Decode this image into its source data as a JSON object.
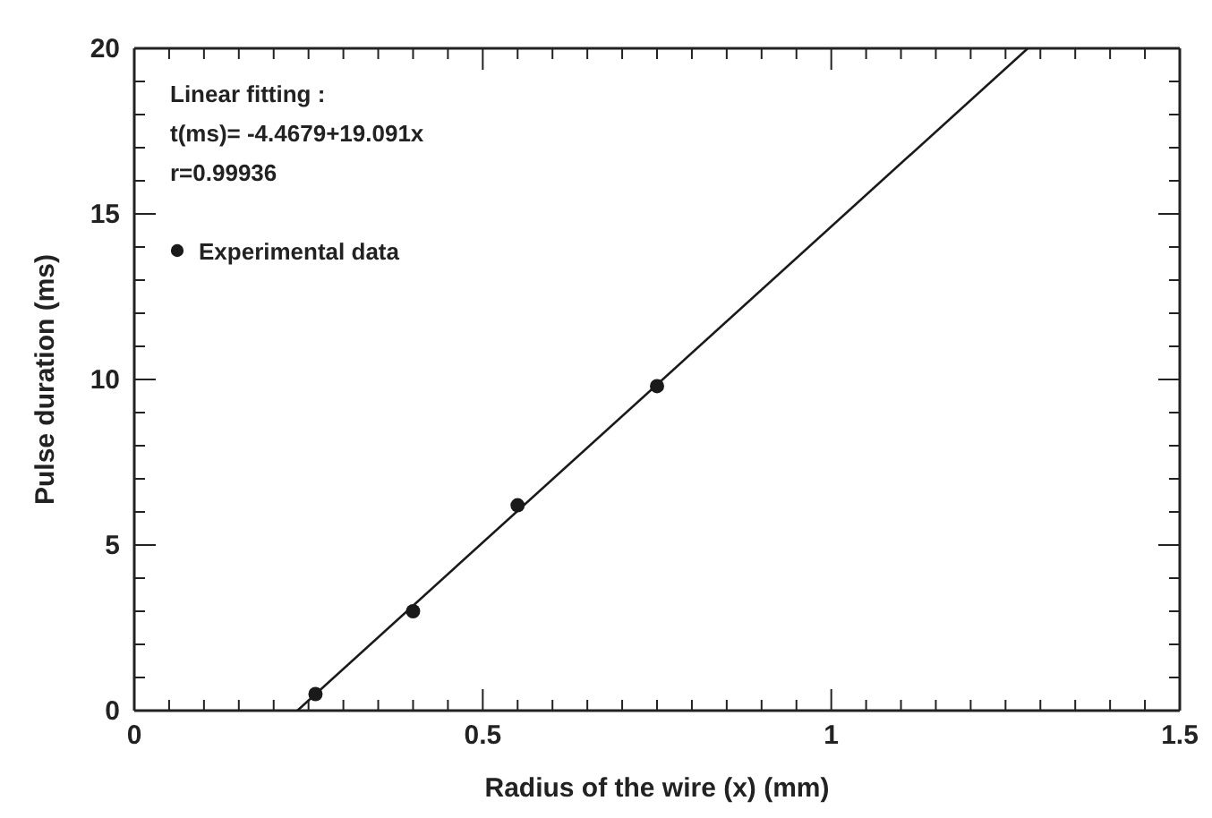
{
  "chart_data": {
    "type": "scatter",
    "xlabel": "Radius of the wire (x) (mm)",
    "ylabel": "Pulse duration (ms)",
    "annotations": [
      "Linear fitting :",
      "t(ms)= -4.4679+19.091x",
      "r=0.99936"
    ],
    "xlim": [
      0,
      1.5
    ],
    "ylim": [
      0,
      20
    ],
    "xticks": [
      0,
      {
        "value": 0.05,
        "label": null
      },
      {
        "value": 0.1,
        "label": null
      },
      {
        "value": 0.15,
        "label": null
      },
      {
        "value": 0.2,
        "label": null
      },
      {
        "value": 0.25,
        "label": null
      },
      {
        "value": 0.3,
        "label": null
      },
      {
        "value": 0.35,
        "label": null
      },
      {
        "value": 0.4,
        "label": null
      },
      {
        "value": 0.45,
        "label": null
      },
      0.5,
      {
        "value": 0.55,
        "label": null
      },
      {
        "value": 0.6,
        "label": null
      },
      {
        "value": 0.65,
        "label": null
      },
      {
        "value": 0.7,
        "label": null
      },
      {
        "value": 0.75,
        "label": null
      },
      {
        "value": 0.8,
        "label": null
      },
      {
        "value": 0.85,
        "label": null
      },
      {
        "value": 0.9,
        "label": null
      },
      {
        "value": 0.95,
        "label": null
      },
      1,
      {
        "value": 1.05,
        "label": null
      },
      {
        "value": 1.1,
        "label": null
      },
      {
        "value": 1.15,
        "label": null
      },
      {
        "value": 1.2,
        "label": null
      },
      {
        "value": 1.25,
        "label": null
      },
      {
        "value": 1.3,
        "label": null
      },
      {
        "value": 1.35,
        "label": null
      },
      {
        "value": 1.4,
        "label": null
      },
      {
        "value": 1.45,
        "label": null
      },
      1.5
    ],
    "yticks": [
      0,
      {
        "value": 1,
        "label": null
      },
      {
        "value": 2,
        "label": null
      },
      {
        "value": 3,
        "label": null
      },
      {
        "value": 4,
        "label": null
      },
      5,
      {
        "value": 6,
        "label": null
      },
      {
        "value": 7,
        "label": null
      },
      {
        "value": 8,
        "label": null
      },
      {
        "value": 9,
        "label": null
      },
      10,
      {
        "value": 11,
        "label": null
      },
      {
        "value": 12,
        "label": null
      },
      {
        "value": 13,
        "label": null
      },
      {
        "value": 14,
        "label": null
      },
      15,
      {
        "value": 16,
        "label": null
      },
      {
        "value": 17,
        "label": null
      },
      {
        "value": 18,
        "label": null
      },
      {
        "value": 19,
        "label": null
      },
      20
    ],
    "legend": "top left",
    "grid": false,
    "series": [
      {
        "name": "Experimental data",
        "marker": "circle",
        "color": "#1a1a1a",
        "x": [
          0.26,
          0.4,
          0.55,
          0.75
        ],
        "values": [
          0.5,
          3.0,
          6.2,
          9.8
        ]
      },
      {
        "type": "line",
        "color": "#1a1a1a",
        "x": [
          0.234,
          1.282
        ],
        "values": [
          0,
          20
        ]
      }
    ]
  }
}
